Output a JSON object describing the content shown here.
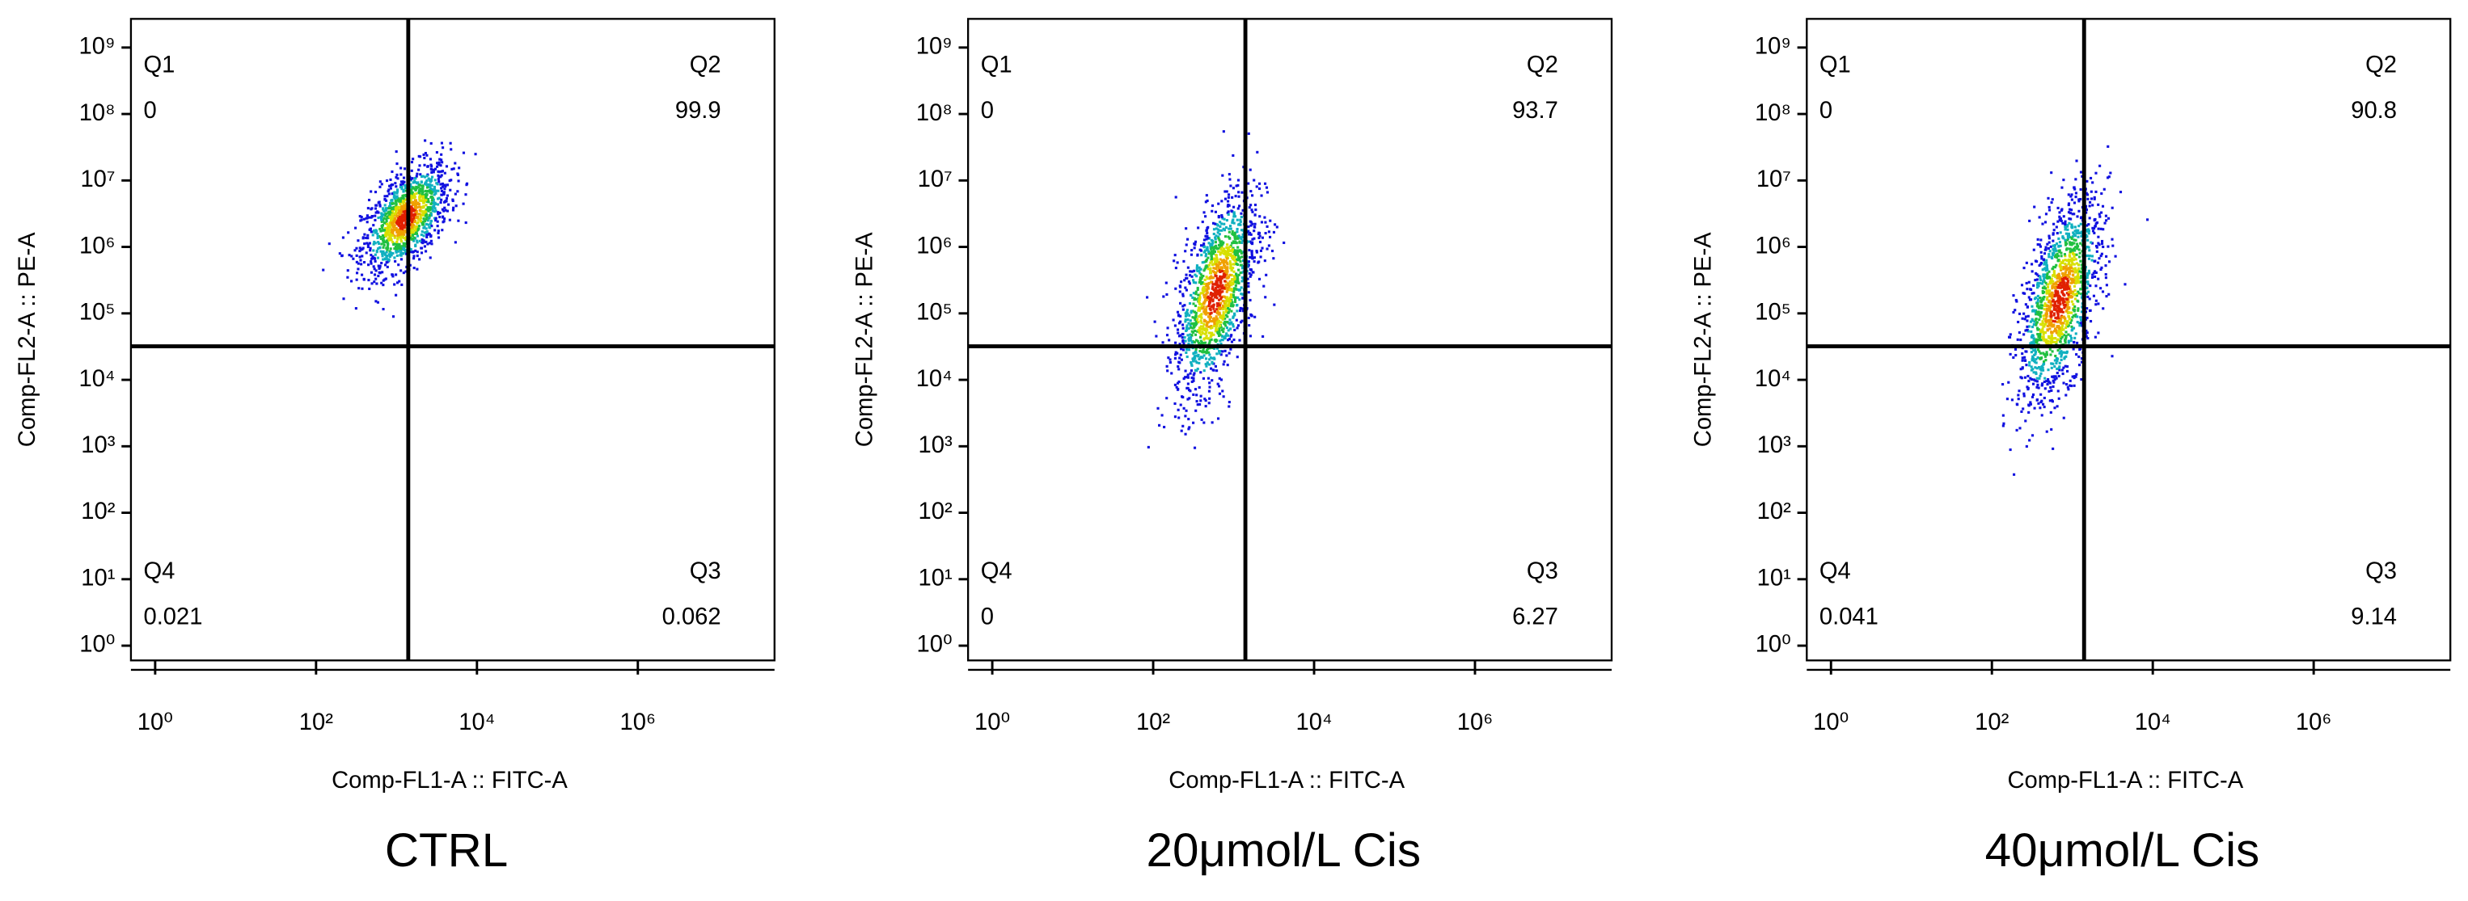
{
  "chart_data": [
    {
      "type": "scatter",
      "title": "CTRL",
      "x_label": "Comp-FL1-A :: FITC-A",
      "y_label": "Comp-FL2-A :: PE-A",
      "log_x": true,
      "log_y": true,
      "xlim": [
        0.5,
        50000000
      ],
      "ylim": [
        0.6,
        2700000000
      ],
      "xticks": [
        {
          "value": 1,
          "label": "10⁰"
        },
        {
          "value": 100,
          "label": "10²"
        },
        {
          "value": 10000,
          "label": "10⁴"
        },
        {
          "value": 1000000,
          "label": "10⁶"
        }
      ],
      "yticks": [
        {
          "value": 1,
          "label": "10⁰"
        },
        {
          "value": 10,
          "label": "10¹"
        },
        {
          "value": 100,
          "label": "10²"
        },
        {
          "value": 1000,
          "label": "10³"
        },
        {
          "value": 10000,
          "label": "10⁴"
        },
        {
          "value": 100000,
          "label": "10⁵"
        },
        {
          "value": 1000000,
          "label": "10⁶"
        },
        {
          "value": 10000000,
          "label": "10⁷"
        },
        {
          "value": 100000000,
          "label": "10⁸"
        },
        {
          "value": 1000000000,
          "label": "10⁹"
        }
      ],
      "gate": {
        "x": 1400,
        "y": 32000
      },
      "quadrants": [
        {
          "name": "Q1",
          "value": 0
        },
        {
          "name": "Q2",
          "value": 99.9
        },
        {
          "name": "Q3",
          "value": 0.062
        },
        {
          "name": "Q4",
          "value": 0.021
        }
      ]
    },
    {
      "type": "scatter",
      "title": "20μmol/L Cis",
      "x_label": "Comp-FL1-A :: FITC-A",
      "y_label": "Comp-FL2-A :: PE-A",
      "log_x": true,
      "log_y": true,
      "xlim": [
        0.5,
        50000000
      ],
      "ylim": [
        0.6,
        2700000000
      ],
      "xticks": [
        {
          "value": 1,
          "label": "10⁰"
        },
        {
          "value": 100,
          "label": "10²"
        },
        {
          "value": 10000,
          "label": "10⁴"
        },
        {
          "value": 1000000,
          "label": "10⁶"
        }
      ],
      "yticks": [
        {
          "value": 1,
          "label": "10⁰"
        },
        {
          "value": 10,
          "label": "10¹"
        },
        {
          "value": 100,
          "label": "10²"
        },
        {
          "value": 1000,
          "label": "10³"
        },
        {
          "value": 10000,
          "label": "10⁴"
        },
        {
          "value": 100000,
          "label": "10⁵"
        },
        {
          "value": 1000000,
          "label": "10⁶"
        },
        {
          "value": 10000000,
          "label": "10⁷"
        },
        {
          "value": 100000000,
          "label": "10⁸"
        },
        {
          "value": 1000000000,
          "label": "10⁹"
        }
      ],
      "gate": {
        "x": 1400,
        "y": 32000
      },
      "quadrants": [
        {
          "name": "Q1",
          "value": 0
        },
        {
          "name": "Q2",
          "value": 93.7
        },
        {
          "name": "Q3",
          "value": 6.27
        },
        {
          "name": "Q4",
          "value": 0
        }
      ]
    },
    {
      "type": "scatter",
      "title": "40μmol/L Cis",
      "x_label": "Comp-FL1-A :: FITC-A",
      "y_label": "Comp-FL2-A :: PE-A",
      "log_x": true,
      "log_y": true,
      "xlim": [
        0.5,
        50000000
      ],
      "ylim": [
        0.6,
        2700000000
      ],
      "xticks": [
        {
          "value": 1,
          "label": "10⁰"
        },
        {
          "value": 100,
          "label": "10²"
        },
        {
          "value": 10000,
          "label": "10⁴"
        },
        {
          "value": 1000000,
          "label": "10⁶"
        }
      ],
      "yticks": [
        {
          "value": 1,
          "label": "10⁰"
        },
        {
          "value": 10,
          "label": "10¹"
        },
        {
          "value": 100,
          "label": "10²"
        },
        {
          "value": 1000,
          "label": "10³"
        },
        {
          "value": 10000,
          "label": "10⁴"
        },
        {
          "value": 100000,
          "label": "10⁵"
        },
        {
          "value": 1000000,
          "label": "10⁶"
        },
        {
          "value": 10000000,
          "label": "10⁷"
        },
        {
          "value": 100000000,
          "label": "10⁸"
        },
        {
          "value": 1000000000,
          "label": "10⁹"
        }
      ],
      "gate": {
        "x": 1400,
        "y": 32000
      },
      "quadrants": [
        {
          "name": "Q1",
          "value": 0
        },
        {
          "name": "Q2",
          "value": 90.8
        },
        {
          "name": "Q3",
          "value": 9.14
        },
        {
          "name": "Q4",
          "value": 0.041
        }
      ]
    }
  ]
}
